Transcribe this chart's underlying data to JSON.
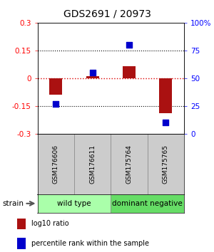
{
  "title": "GDS2691 / 20973",
  "samples": [
    "GSM176606",
    "GSM176611",
    "GSM175764",
    "GSM175765"
  ],
  "log10_ratio": [
    -0.09,
    0.01,
    0.065,
    -0.19
  ],
  "percentile_rank": [
    27,
    55,
    80,
    10
  ],
  "groups": [
    {
      "label": "wild type",
      "samples": [
        0,
        1
      ],
      "color": "#aaffaa"
    },
    {
      "label": "dominant negative",
      "samples": [
        2,
        3
      ],
      "color": "#66dd66"
    }
  ],
  "strain_label": "strain",
  "ylim_left": [
    -0.3,
    0.3
  ],
  "ylim_right": [
    0,
    100
  ],
  "yticks_left": [
    -0.3,
    -0.15,
    0,
    0.15,
    0.3
  ],
  "ytick_labels_left": [
    "-0.3",
    "-0.15",
    "0",
    "0.15",
    "0.3"
  ],
  "yticks_right": [
    0,
    25,
    50,
    75,
    100
  ],
  "ytick_labels_right": [
    "0",
    "25",
    "50",
    "75",
    "100%"
  ],
  "hlines": [
    0.15,
    -0.15
  ],
  "zero_line_color": "#dd0000",
  "bar_color": "#aa1111",
  "dot_color": "#0000cc",
  "bar_width": 0.35,
  "dot_size": 40,
  "legend_items": [
    {
      "color": "#aa1111",
      "label": "log10 ratio"
    },
    {
      "color": "#0000cc",
      "label": "percentile rank within the sample"
    }
  ],
  "title_fontsize": 10,
  "tick_fontsize": 7.5,
  "sample_fontsize": 6.5,
  "group_fontsize": 7.5,
  "legend_fontsize": 7
}
